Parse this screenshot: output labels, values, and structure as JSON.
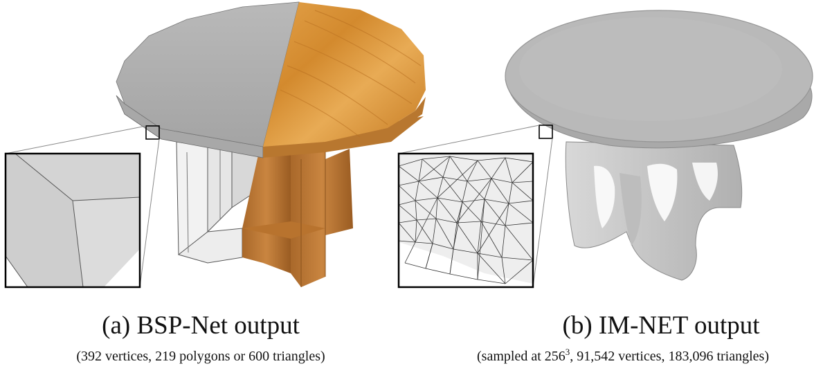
{
  "panel_a": {
    "label": "(a) BSP-Net output",
    "details": "(392 vertices, 219 polygons or 600 triangles)"
  },
  "panel_b": {
    "label": "(b) IM-NET output",
    "details_prefix": "(sampled at 256",
    "details_exponent": "3",
    "details_suffix": ", 91,542 vertices, 183,096 triangles)"
  }
}
